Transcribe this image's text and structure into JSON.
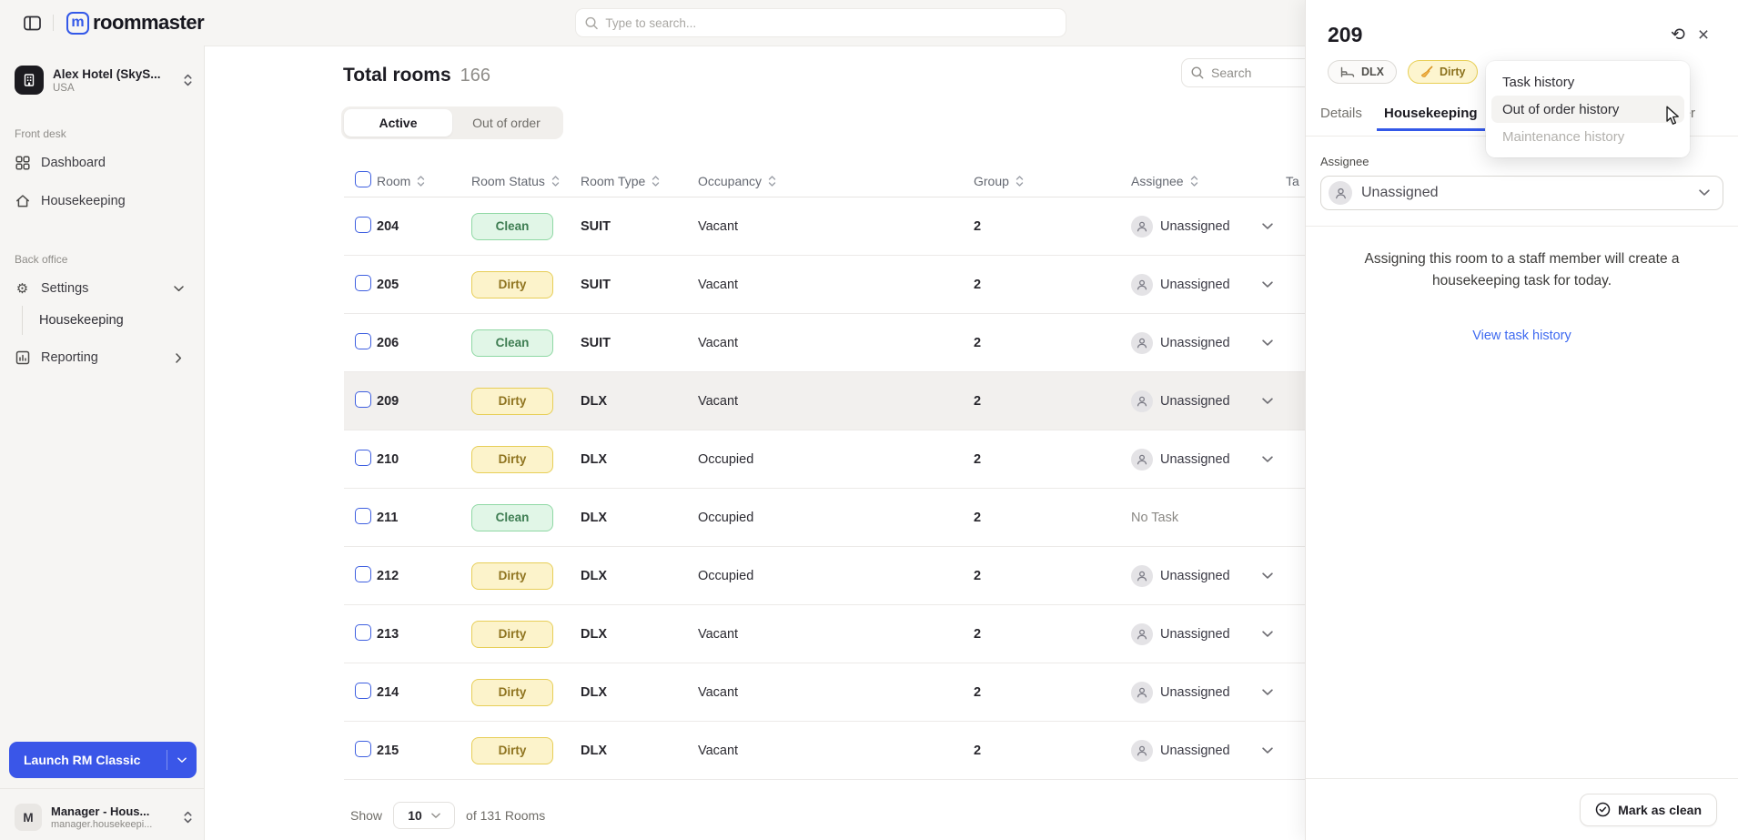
{
  "topbar": {
    "logo": "roommaster",
    "logo_mark": "m",
    "search_placeholder": "Type to search..."
  },
  "sidebar": {
    "hotel_name": "Alex Hotel (SkyS...",
    "hotel_region": "USA",
    "front_desk_label": "Front desk",
    "back_office_label": "Back office",
    "dashboard": "Dashboard",
    "housekeeping": "Housekeeping",
    "settings": "Settings",
    "settings_sub": "Housekeeping",
    "reporting": "Reporting",
    "launch_button": "Launch RM Classic",
    "user_initial": "M",
    "user_name": "Manager - Hous...",
    "user_email": "manager.housekeepi..."
  },
  "main": {
    "title": "Total rooms",
    "count": "166",
    "tab_active": "Active",
    "tab_out_of_order": "Out of order",
    "search_placeholder": "Search",
    "table": {
      "columns": [
        "Room",
        "Room Status",
        "Room Type",
        "Occupancy",
        "Group",
        "Assignee",
        "Ta"
      ],
      "rows": [
        {
          "room": "204",
          "status": "Clean",
          "room_type": "SUIT",
          "occupancy": "Vacant",
          "group": "2",
          "assignee": "Unassigned"
        },
        {
          "room": "205",
          "status": "Dirty",
          "room_type": "SUIT",
          "occupancy": "Vacant",
          "group": "2",
          "assignee": "Unassigned"
        },
        {
          "room": "206",
          "status": "Clean",
          "room_type": "SUIT",
          "occupancy": "Vacant",
          "group": "2",
          "assignee": "Unassigned"
        },
        {
          "room": "209",
          "status": "Dirty",
          "room_type": "DLX",
          "occupancy": "Vacant",
          "group": "2",
          "assignee": "Unassigned",
          "highlighted": true
        },
        {
          "room": "210",
          "status": "Dirty",
          "room_type": "DLX",
          "occupancy": "Occupied",
          "group": "2",
          "assignee": "Unassigned"
        },
        {
          "room": "211",
          "status": "Clean",
          "room_type": "DLX",
          "occupancy": "Occupied",
          "group": "2",
          "assignee": "No Task"
        },
        {
          "room": "212",
          "status": "Dirty",
          "room_type": "DLX",
          "occupancy": "Occupied",
          "group": "2",
          "assignee": "Unassigned"
        },
        {
          "room": "213",
          "status": "Dirty",
          "room_type": "DLX",
          "occupancy": "Vacant",
          "group": "2",
          "assignee": "Unassigned"
        },
        {
          "room": "214",
          "status": "Dirty",
          "room_type": "DLX",
          "occupancy": "Vacant",
          "group": "2",
          "assignee": "Unassigned"
        },
        {
          "room": "215",
          "status": "Dirty",
          "room_type": "DLX",
          "occupancy": "Vacant",
          "group": "2",
          "assignee": "Unassigned"
        }
      ]
    },
    "footer": {
      "show_label": "Show",
      "page_size": "10",
      "of_label": "of 131 Rooms"
    }
  },
  "panel": {
    "room_number": "209",
    "type_badge": "DLX",
    "status_badge": "Dirty",
    "tabs": {
      "details": "Details",
      "housekeeping": "Housekeeping",
      "out_of_order": "Out of order"
    },
    "menu": {
      "task_history": "Task history",
      "out_of_order_history": "Out of order history",
      "maintenance_history": "Maintenance history"
    },
    "assignee_label": "Assignee",
    "assignee_value": "Unassigned",
    "note": "Assigning this room to a staff member will create a housekeeping task for today.",
    "view_task_history": "View task history",
    "mark_as_clean": "Mark as clean"
  },
  "colors": {
    "accent_blue": "#3358e8",
    "link_blue": "#3f6af0",
    "clean_bg": "#e1f6e7",
    "clean_border": "#8fd8a4",
    "clean_text": "#3e7d52",
    "dirty_bg": "#fcf3cb",
    "dirty_border": "#e7ce57",
    "dirty_text": "#8f7420",
    "sidebar_bg": "#f6f5f3"
  }
}
